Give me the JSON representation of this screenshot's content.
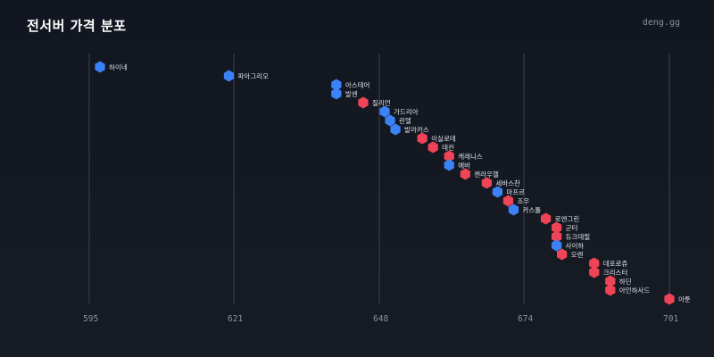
{
  "header": {
    "title": "전서버 가격 분포",
    "watermark": "deng.gg"
  },
  "colors": {
    "blue": "#3b82f6",
    "red": "#ef4457"
  },
  "chart_data": {
    "type": "scatter",
    "title": "전서버 가격 분포",
    "xlabel": "",
    "ylabel": "",
    "x_ticks": [
      595,
      621,
      648,
      674,
      701
    ],
    "xlim": [
      594,
      702
    ],
    "grid": true,
    "series": [
      {
        "color": "blue",
        "points": [
          {
            "label": "하이네",
            "x": 596
          },
          {
            "label": "파아그리오",
            "x": 620
          },
          {
            "label": "아스테어",
            "x": 640
          },
          {
            "label": "발센",
            "x": 640
          },
          {
            "label": "가드리아",
            "x": 649
          },
          {
            "label": "린델",
            "x": 650
          },
          {
            "label": "발라카스",
            "x": 651
          },
          {
            "label": "에바",
            "x": 661
          },
          {
            "label": "마프르",
            "x": 670
          },
          {
            "label": "카스톨",
            "x": 673
          },
          {
            "label": "사이하",
            "x": 681
          }
        ]
      },
      {
        "color": "red",
        "points": [
          {
            "label": "질리언",
            "x": 645
          },
          {
            "label": "이실로테",
            "x": 656
          },
          {
            "label": "데컨",
            "x": 658
          },
          {
            "label": "케레니스",
            "x": 661
          },
          {
            "label": "켄라우헬",
            "x": 664
          },
          {
            "label": "세바스찬",
            "x": 668
          },
          {
            "label": "조우",
            "x": 672
          },
          {
            "label": "로엔그린",
            "x": 679
          },
          {
            "label": "군터",
            "x": 681
          },
          {
            "label": "듀크데필",
            "x": 681
          },
          {
            "label": "오렌",
            "x": 682
          },
          {
            "label": "데포로쥬",
            "x": 688
          },
          {
            "label": "크리스터",
            "x": 688
          },
          {
            "label": "하딘",
            "x": 691
          },
          {
            "label": "아인하사드",
            "x": 691
          },
          {
            "label": "아툰",
            "x": 702
          }
        ]
      }
    ],
    "order": [
      "하이네",
      "파아그리오",
      "아스테어",
      "발센",
      "질리언",
      "가드리아",
      "린델",
      "발라카스",
      "이실로테",
      "데컨",
      "케레니스",
      "에바",
      "켄라우헬",
      "세바스찬",
      "마프르",
      "조우",
      "카스톨",
      "로엔그린",
      "군터",
      "듀크데필",
      "사이하",
      "오렌",
      "데포로쥬",
      "크리스터",
      "하딘",
      "아인하사드",
      "아툰"
    ]
  }
}
